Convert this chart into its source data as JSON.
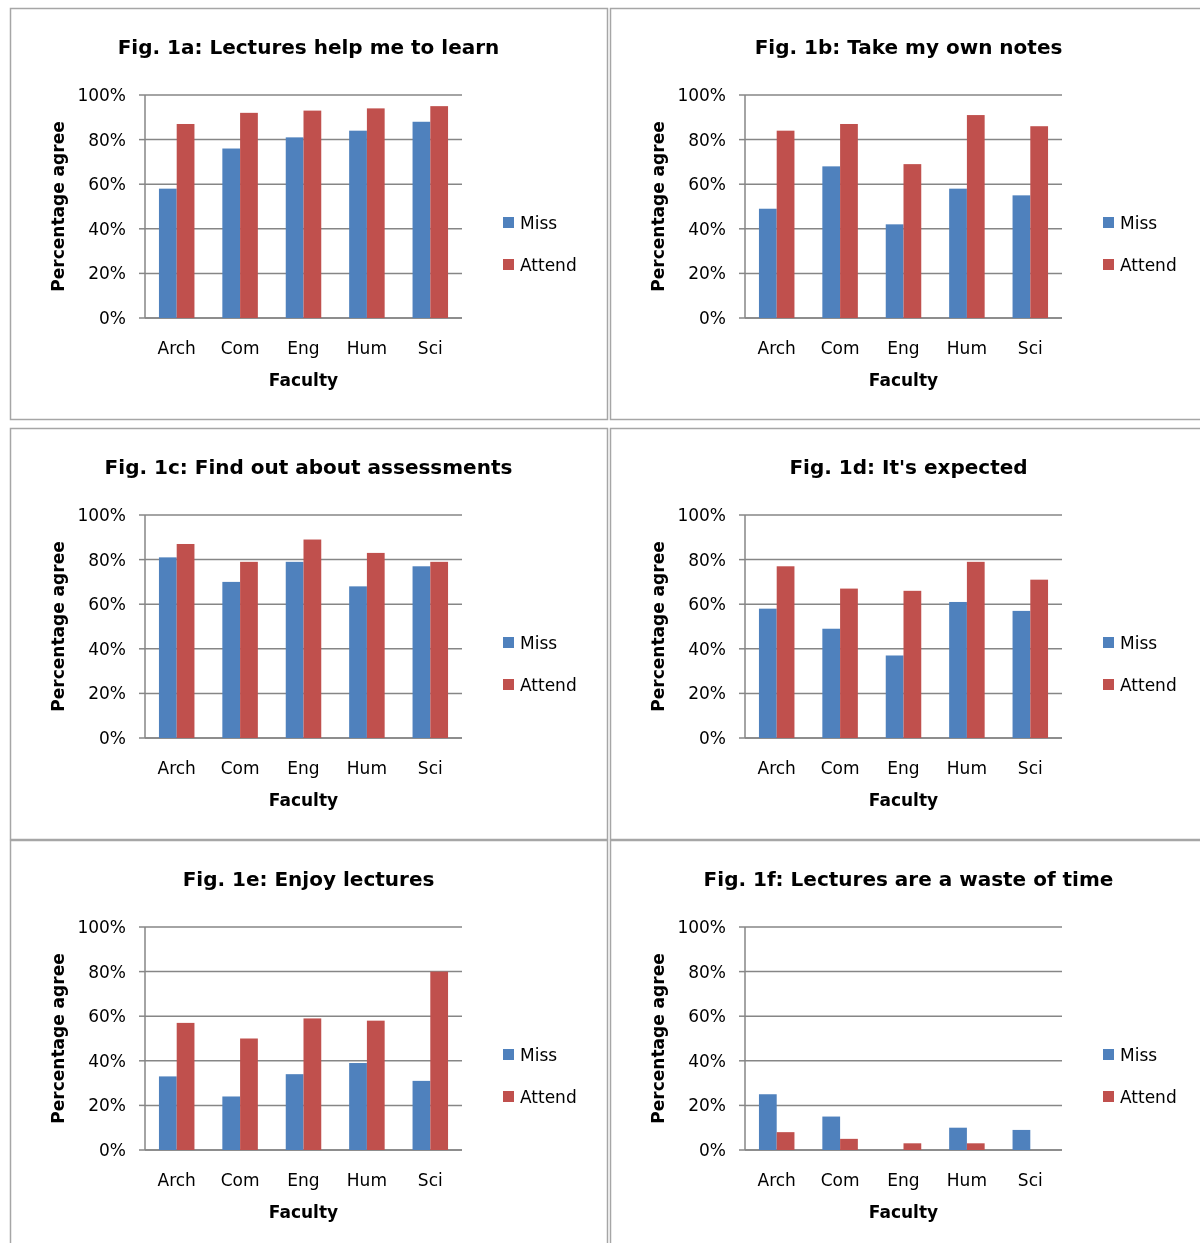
{
  "chart_data": [
    {
      "type": "bar",
      "title": "Fig. 1a: Lectures help me to learn",
      "xlabel": "Faculty",
      "ylabel": "Percentage agree",
      "categories": [
        "Arch",
        "Com",
        "Eng",
        "Hum",
        "Sci"
      ],
      "series": [
        {
          "name": "Miss",
          "color": "#4f81bd",
          "values": [
            58,
            76,
            81,
            84,
            88
          ]
        },
        {
          "name": "Attend",
          "color": "#c0504d",
          "values": [
            87,
            92,
            93,
            94,
            95
          ]
        }
      ],
      "ylim": [
        0,
        100
      ],
      "yticks": [
        {
          "value": 0,
          "label": "0%"
        },
        {
          "value": 20,
          "label": "20%"
        },
        {
          "value": 40,
          "label": "40%"
        },
        {
          "value": 60,
          "label": "60%"
        },
        {
          "value": 80,
          "label": "80%"
        },
        {
          "value": 100,
          "label": "100%"
        }
      ],
      "grid": "y",
      "legend": "right"
    },
    {
      "type": "bar",
      "title": "Fig. 1b: Take my own notes",
      "xlabel": "Faculty",
      "ylabel": "Percentage agree",
      "categories": [
        "Arch",
        "Com",
        "Eng",
        "Hum",
        "Sci"
      ],
      "series": [
        {
          "name": "Miss",
          "color": "#4f81bd",
          "values": [
            49,
            68,
            42,
            58,
            55
          ]
        },
        {
          "name": "Attend",
          "color": "#c0504d",
          "values": [
            84,
            87,
            69,
            91,
            86
          ]
        }
      ],
      "ylim": [
        0,
        100
      ],
      "yticks": [
        {
          "value": 0,
          "label": "0%"
        },
        {
          "value": 20,
          "label": "20%"
        },
        {
          "value": 40,
          "label": "40%"
        },
        {
          "value": 60,
          "label": "60%"
        },
        {
          "value": 80,
          "label": "80%"
        },
        {
          "value": 100,
          "label": "100%"
        }
      ],
      "grid": "y",
      "legend": "right"
    },
    {
      "type": "bar",
      "title": "Fig. 1c: Find out about assessments",
      "xlabel": "Faculty",
      "ylabel": "Percentage agree",
      "categories": [
        "Arch",
        "Com",
        "Eng",
        "Hum",
        "Sci"
      ],
      "series": [
        {
          "name": "Miss",
          "color": "#4f81bd",
          "values": [
            81,
            70,
            79,
            68,
            77
          ]
        },
        {
          "name": "Attend",
          "color": "#c0504d",
          "values": [
            87,
            79,
            89,
            83,
            79
          ]
        }
      ],
      "ylim": [
        0,
        100
      ],
      "yticks": [
        {
          "value": 0,
          "label": "0%"
        },
        {
          "value": 20,
          "label": "20%"
        },
        {
          "value": 40,
          "label": "40%"
        },
        {
          "value": 60,
          "label": "60%"
        },
        {
          "value": 80,
          "label": "80%"
        },
        {
          "value": 100,
          "label": "100%"
        }
      ],
      "grid": "y",
      "legend": "right"
    },
    {
      "type": "bar",
      "title": "Fig. 1d: It's expected",
      "xlabel": "Faculty",
      "ylabel": "Percentage agree",
      "categories": [
        "Arch",
        "Com",
        "Eng",
        "Hum",
        "Sci"
      ],
      "series": [
        {
          "name": "Miss",
          "color": "#4f81bd",
          "values": [
            58,
            49,
            37,
            61,
            57
          ]
        },
        {
          "name": "Attend",
          "color": "#c0504d",
          "values": [
            77,
            67,
            66,
            79,
            71
          ]
        }
      ],
      "ylim": [
        0,
        100
      ],
      "yticks": [
        {
          "value": 0,
          "label": "0%"
        },
        {
          "value": 20,
          "label": "20%"
        },
        {
          "value": 40,
          "label": "40%"
        },
        {
          "value": 60,
          "label": "60%"
        },
        {
          "value": 80,
          "label": "80%"
        },
        {
          "value": 100,
          "label": "100%"
        }
      ],
      "grid": "y",
      "legend": "right"
    },
    {
      "type": "bar",
      "title": "Fig. 1e: Enjoy lectures",
      "xlabel": "Faculty",
      "ylabel": "Percentage agree",
      "categories": [
        "Arch",
        "Com",
        "Eng",
        "Hum",
        "Sci"
      ],
      "series": [
        {
          "name": "Miss",
          "color": "#4f81bd",
          "values": [
            33,
            24,
            34,
            39,
            31
          ]
        },
        {
          "name": "Attend",
          "color": "#c0504d",
          "values": [
            57,
            50,
            59,
            58,
            80
          ]
        }
      ],
      "ylim": [
        0,
        100
      ],
      "yticks": [
        {
          "value": 0,
          "label": "0%"
        },
        {
          "value": 20,
          "label": "20%"
        },
        {
          "value": 40,
          "label": "40%"
        },
        {
          "value": 60,
          "label": "60%"
        },
        {
          "value": 80,
          "label": "80%"
        },
        {
          "value": 100,
          "label": "100%"
        }
      ],
      "grid": "y",
      "legend": "right"
    },
    {
      "type": "bar",
      "title": "Fig. 1f: Lectures are a waste of time",
      "xlabel": "Faculty",
      "ylabel": "Percentage agree",
      "categories": [
        "Arch",
        "Com",
        "Eng",
        "Hum",
        "Sci"
      ],
      "series": [
        {
          "name": "Miss",
          "color": "#4f81bd",
          "values": [
            25,
            15,
            0,
            10,
            9
          ]
        },
        {
          "name": "Attend",
          "color": "#c0504d",
          "values": [
            8,
            5,
            3,
            3,
            0
          ]
        }
      ],
      "ylim": [
        0,
        100
      ],
      "yticks": [
        {
          "value": 0,
          "label": "0%"
        },
        {
          "value": 20,
          "label": "20%"
        },
        {
          "value": 40,
          "label": "40%"
        },
        {
          "value": 60,
          "label": "60%"
        },
        {
          "value": 80,
          "label": "80%"
        },
        {
          "value": 100,
          "label": "100%"
        }
      ],
      "grid": "y",
      "legend": "right"
    }
  ]
}
